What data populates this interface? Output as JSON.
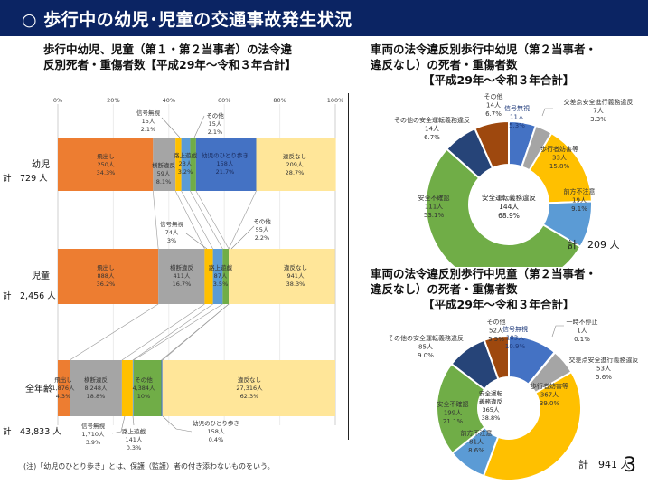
{
  "header": {
    "title": "○ 歩行中の幼児･児童の交通事故発生状況"
  },
  "left": {
    "title_line1": "歩行中幼児、児童（第１・第２当事者）の法令違",
    "title_line2": "反別死者・重傷者数【平成29年～令和３年合計】",
    "note": "(注)「幼児のひとり歩き」とは、保護（監護）者の付き添わないものをいう。"
  },
  "right_top": {
    "title_line1": "車両の法令違反別歩行中幼児（第２当事者・",
    "title_line2": "違反なし）の死者・重傷者数",
    "title_line3": "【平成29年～令和３年合計】",
    "total": "計　209 人"
  },
  "right_bottom": {
    "title_line1": "車両の法令違反別歩行中児童（第２当事者・",
    "title_line2": "違反なし）の死者・重傷者数",
    "title_line3": "【平成29年～令和３年合計】",
    "total": "計　941 人"
  },
  "page_number": "3",
  "colors": {
    "header_bg": "#0b2463",
    "orange": "#ed7d31",
    "gray": "#a5a5a5",
    "yellow": "#ffc000",
    "lightblue": "#5b9bd5",
    "green": "#70ad47",
    "blue": "#4472c4",
    "pale": "#ffe699",
    "navy": "#264478",
    "brown": "#9e480e"
  },
  "chart_data": [
    {
      "type": "bar",
      "orientation": "horizontal-stacked-100",
      "xlim": [
        0,
        100
      ],
      "xticks": [
        "0%",
        "20%",
        "40%",
        "60%",
        "80%",
        "100%"
      ],
      "categories": [
        {
          "name": "幼児",
          "total": "計　729 人"
        },
        {
          "name": "児童",
          "total": "計　2,456 人"
        },
        {
          "name": "全年齢",
          "total": "計　43,833 人"
        }
      ],
      "series": [
        {
          "name": "飛出し",
          "color": "#ed7d31",
          "values": [
            34.3,
            36.2,
            4.3
          ],
          "counts": [
            "250人",
            "888人",
            "1,876人"
          ],
          "pcts": [
            "34.3%",
            "36.2%",
            "4.3%"
          ]
        },
        {
          "name": "横断違反",
          "color": "#a5a5a5",
          "values": [
            8.1,
            16.7,
            18.8
          ],
          "counts": [
            "59人",
            "411人",
            "8,248人"
          ],
          "pcts": [
            "8.1%",
            "16.7%",
            "18.8%"
          ]
        },
        {
          "name": "信号無視",
          "color": "#ffc000",
          "values": [
            2.1,
            3.0,
            3.9
          ],
          "counts": [
            "15人",
            "74人",
            "1,710人"
          ],
          "pcts": [
            "2.1%",
            "3%",
            "3.9%"
          ]
        },
        {
          "name": "路上遊戯",
          "color": "#5b9bd5",
          "values": [
            3.2,
            3.5,
            0.3
          ],
          "counts": [
            "23人",
            "87人",
            "141人"
          ],
          "pcts": [
            "3.2%",
            "3.5%",
            "0.3%"
          ]
        },
        {
          "name": "その他",
          "color": "#70ad47",
          "values": [
            2.1,
            2.2,
            10.0
          ],
          "counts": [
            "15人",
            "55人",
            "4,384人"
          ],
          "pcts": [
            "2.1%",
            "2.2%",
            "10%"
          ]
        },
        {
          "name": "幼児のひとり歩き",
          "color": "#4472c4",
          "values": [
            21.7,
            0,
            0.4
          ],
          "counts": [
            "158人",
            "",
            "158人"
          ],
          "pcts": [
            "21.7%",
            "",
            "0.4%"
          ]
        },
        {
          "name": "違反なし",
          "color": "#ffe699",
          "values": [
            28.7,
            38.3,
            62.3
          ],
          "counts": [
            "209人",
            "941人",
            "27,316人"
          ],
          "pcts": [
            "28.7%",
            "38.3%",
            "62.3%"
          ]
        }
      ]
    },
    {
      "type": "pie",
      "variant": "doughnut-with-sub-total",
      "title": "車両の法令違反別歩行中幼児（第２当事者・違反なし）の死者・重傷者数",
      "total": 209,
      "center_label": {
        "name": "安全運転義務違反",
        "count": "144人",
        "pct": "68.9%"
      },
      "slices": [
        {
          "name": "信号無視",
          "value": 11,
          "count": "11人",
          "pct": "5.3%",
          "color": "#4472c4"
        },
        {
          "name": "交差点安全進行義務違反",
          "value": 7,
          "count": "7人",
          "pct": "3.3%",
          "color": "#a5a5a5"
        },
        {
          "name": "歩行者妨害等",
          "value": 33,
          "count": "33人",
          "pct": "15.8%",
          "color": "#ffc000"
        },
        {
          "name": "前方不注意",
          "value": 19,
          "count": "19人",
          "pct": "9.1%",
          "color": "#5b9bd5"
        },
        {
          "name": "安全不確認",
          "value": 111,
          "count": "111人",
          "pct": "53.1%",
          "color": "#70ad47"
        },
        {
          "name": "その他の安全運転義務違反",
          "value": 14,
          "count": "14人",
          "pct": "6.7%",
          "color": "#264478"
        },
        {
          "name": "その他",
          "value": 14,
          "count": "14人",
          "pct": "6.7%",
          "color": "#9e480e"
        }
      ]
    },
    {
      "type": "pie",
      "variant": "doughnut-with-sub-total",
      "title": "車両の法令違反別歩行中児童（第２当事者・違反なし）の死者・重傷者数",
      "total": 941,
      "center_label": {
        "name1": "安全運転",
        "name2": "義務違反",
        "count": "365人",
        "pct": "38.8%"
      },
      "slices": [
        {
          "name": "信号無視",
          "value": 103,
          "count": "103人",
          "pct": "10.9%",
          "color": "#4472c4"
        },
        {
          "name": "一時不停止",
          "value": 1,
          "count": "1人",
          "pct": "0.1%",
          "color": "#ed7d31"
        },
        {
          "name": "交差点安全進行義務違反",
          "value": 53,
          "count": "53人",
          "pct": "5.6%",
          "color": "#a5a5a5"
        },
        {
          "name": "歩行者妨害等",
          "value": 367,
          "count": "367人",
          "pct": "39.0%",
          "color": "#ffc000"
        },
        {
          "name": "前方不注意",
          "value": 81,
          "count": "81人",
          "pct": "8.6%",
          "color": "#5b9bd5"
        },
        {
          "name": "安全不確認",
          "value": 199,
          "count": "199人",
          "pct": "21.1%",
          "color": "#70ad47"
        },
        {
          "name": "その他の安全運転義務違反",
          "value": 85,
          "count": "85人",
          "pct": "9.0%",
          "color": "#264478"
        },
        {
          "name": "その他",
          "value": 52,
          "count": "52人",
          "pct": "5.5%",
          "color": "#9e480e"
        }
      ]
    }
  ]
}
